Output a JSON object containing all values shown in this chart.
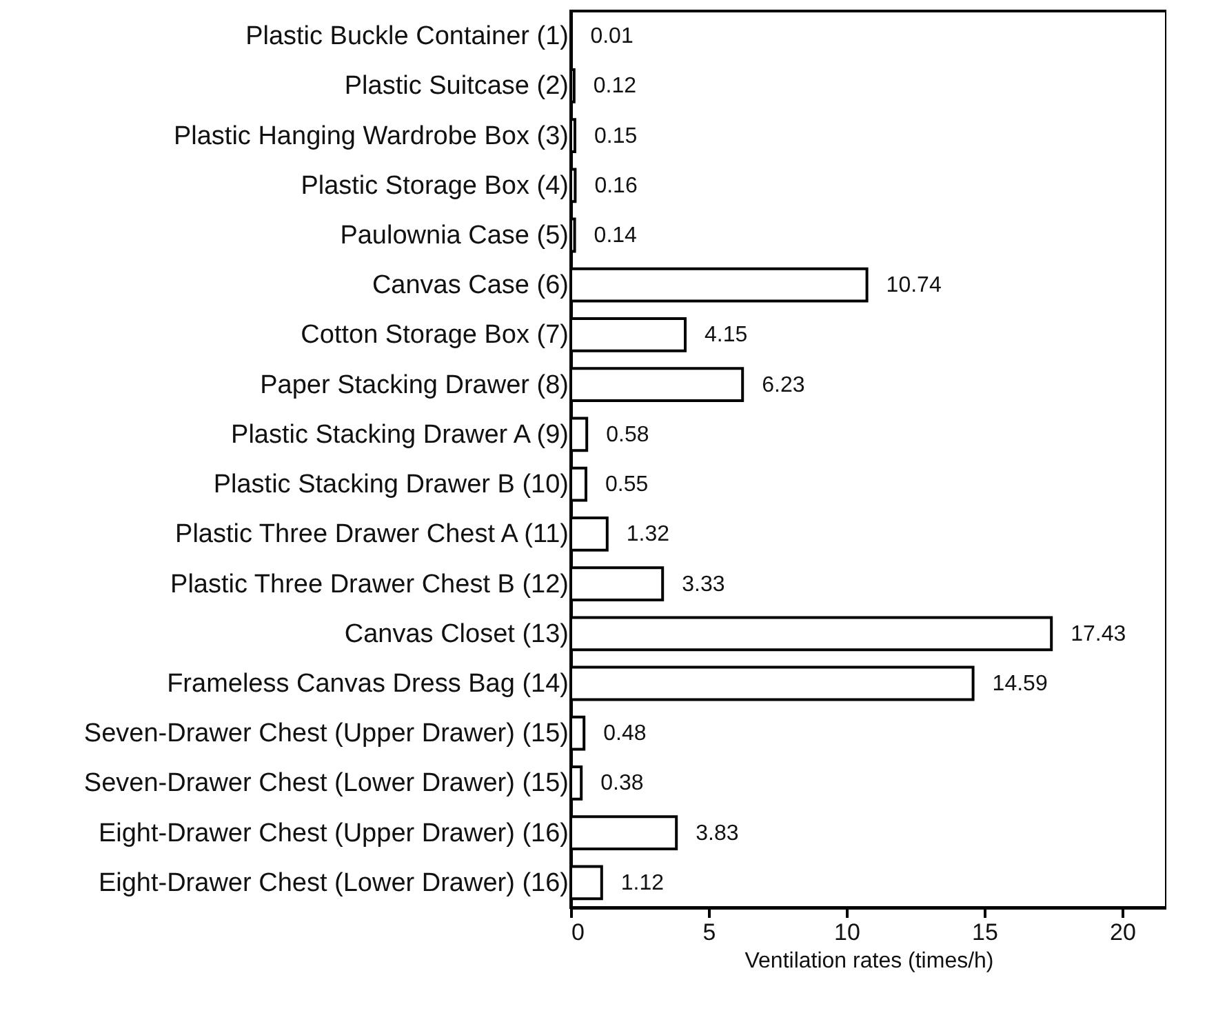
{
  "chart_data": {
    "type": "bar",
    "orientation": "horizontal",
    "xlabel": "Ventilation rates (times/h)",
    "categories": [
      "Plastic Buckle Container  (1)",
      "Plastic Suitcase  (2)",
      "Plastic Hanging Wardrobe Box  (3)",
      "Plastic Storage Box  (4)",
      "Paulownia Case  (5)",
      "Canvas Case  (6)",
      "Cotton Storage Box  (7)",
      "Paper Stacking Drawer  (8)",
      "Plastic Stacking Drawer A  (9)",
      "Plastic Stacking Drawer B (10)",
      "Plastic Three Drawer Chest A (11)",
      "Plastic Three Drawer Chest B (12)",
      "Canvas Closet (13)",
      "Frameless Canvas Dress Bag (14)",
      "Seven-Drawer Chest (Upper Drawer) (15)",
      "Seven-Drawer Chest (Lower Drawer) (15)",
      "Eight-Drawer Chest (Upper Drawer) (16)",
      "Eight-Drawer Chest (Lower Drawer) (16)"
    ],
    "values": [
      0.01,
      0.12,
      0.15,
      0.16,
      0.14,
      10.74,
      4.15,
      6.23,
      0.58,
      0.55,
      1.32,
      3.33,
      17.43,
      14.59,
      0.48,
      0.38,
      3.83,
      1.12
    ],
    "color": "#ffffff",
    "data_labels": true,
    "xlim": [
      0,
      21.6
    ],
    "xticks": [
      0,
      5,
      10,
      15,
      20
    ],
    "grid": false
  }
}
